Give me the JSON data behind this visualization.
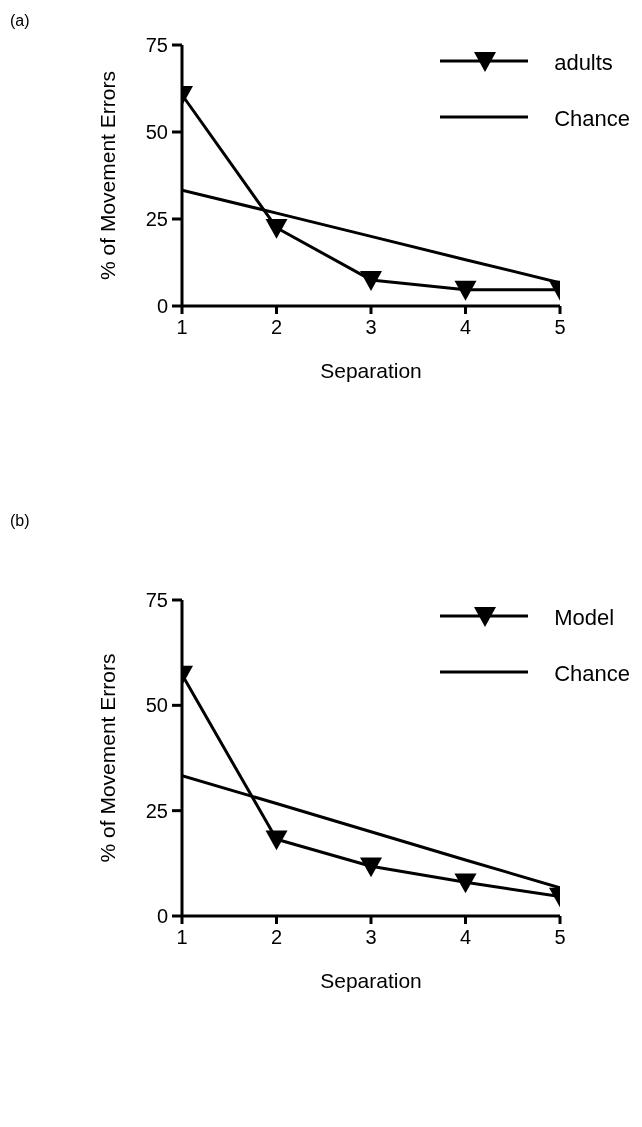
{
  "chart_data": [
    {
      "type": "line",
      "annotations": [
        "(a)"
      ],
      "xlabel": "Separation",
      "ylabel": "% of Movement Errors",
      "x": [
        1,
        2,
        3,
        4,
        5
      ],
      "series": [
        {
          "name": "adults",
          "color": "#000000",
          "marker": "triangle",
          "values": [
            60.7,
            22.5,
            7.5,
            4.7,
            4.7
          ]
        },
        {
          "name": "Chance",
          "color": "#000000",
          "marker": "none",
          "values": [
            33.3,
            26.7,
            20,
            13.3,
            6.7
          ]
        }
      ],
      "xlim": [
        1,
        5
      ],
      "xticks": [
        1,
        2,
        3,
        4,
        5
      ],
      "ylim": [
        0,
        75
      ],
      "yticks": [
        0,
        25,
        50,
        75
      ],
      "grid": false,
      "legend": "top right"
    },
    {
      "type": "line",
      "annotations": [
        "(b)"
      ],
      "xlabel": "Separation",
      "ylabel": "% of Movement Errors",
      "x": [
        1,
        2,
        3,
        4,
        5
      ],
      "series": [
        {
          "name": "Model",
          "color": "#000000",
          "marker": "triangle",
          "values": [
            57.3,
            18.2,
            11.8,
            8,
            4.6
          ]
        },
        {
          "name": "Chance",
          "color": "#000000",
          "marker": "none",
          "values": [
            33.3,
            26.7,
            20,
            13.3,
            6.7
          ]
        }
      ],
      "xlim": [
        1,
        5
      ],
      "xticks": [
        1,
        2,
        3,
        4,
        5
      ],
      "ylim": [
        0,
        75
      ],
      "yticks": [
        0,
        25,
        50,
        75
      ],
      "grid": false,
      "legend": "top right"
    }
  ]
}
